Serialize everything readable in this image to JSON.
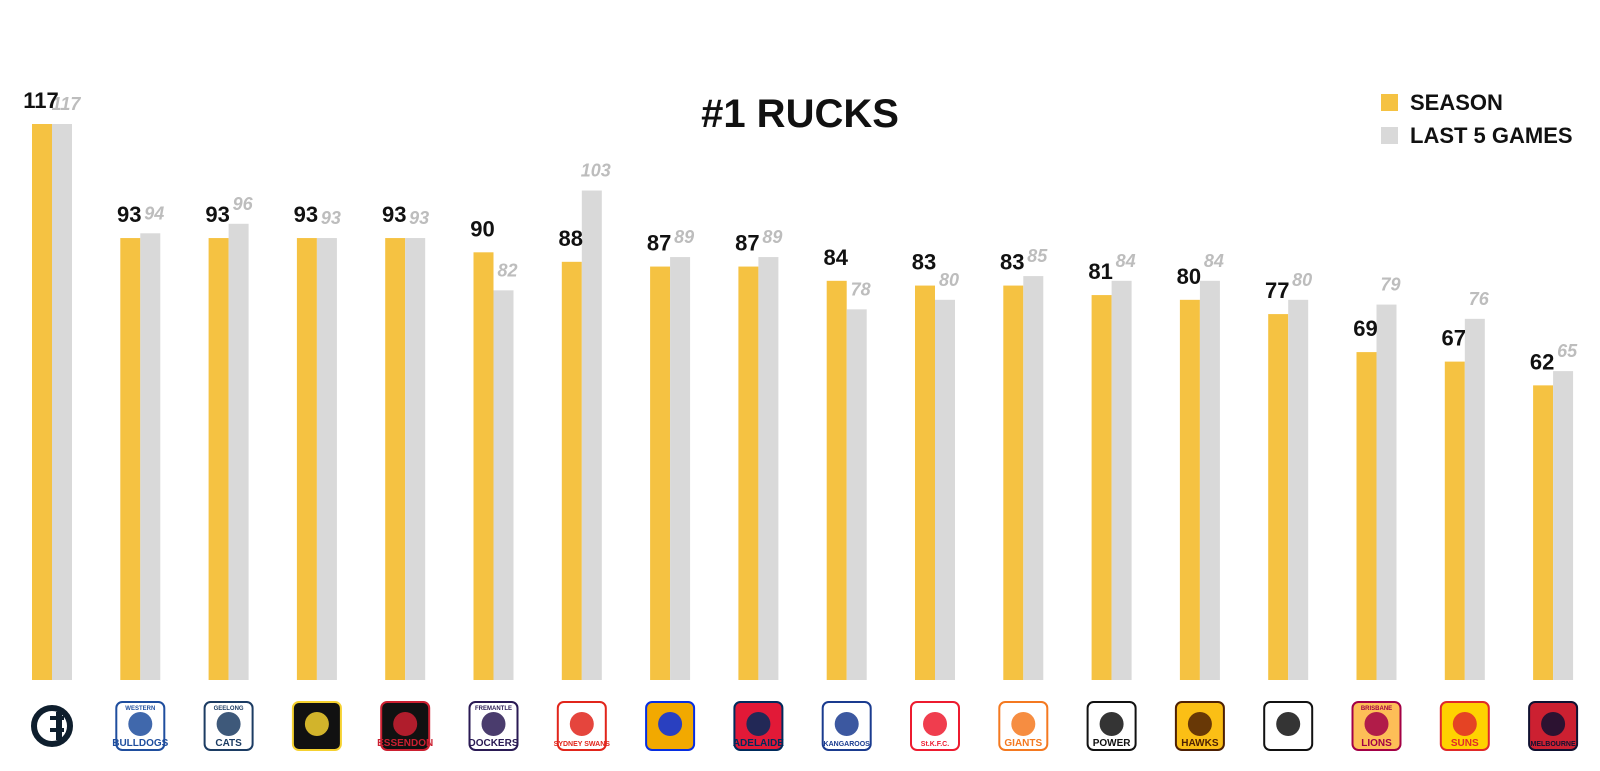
{
  "chart_data": {
    "type": "bar",
    "title": "#1 RUCKS",
    "xlabel": "",
    "ylabel": "",
    "ylim": [
      0,
      117
    ],
    "legend_position": "top-right",
    "grid": false,
    "colors": {
      "season": "#F5C242",
      "last5": "#D9D9D9"
    },
    "categories": [
      "Carlton",
      "Western Bulldogs",
      "Geelong Cats",
      "Richmond",
      "Essendon",
      "Fremantle Dockers",
      "Sydney Swans",
      "West Coast Eagles",
      "Adelaide Crows",
      "Kangaroos",
      "St Kilda",
      "GWS Giants",
      "Port Adelaide Power",
      "Hawthorn Hawks",
      "Collingwood",
      "Brisbane Lions",
      "Gold Coast Suns",
      "Melbourne"
    ],
    "series": [
      {
        "name": "SEASON",
        "values": [
          117,
          93,
          93,
          93,
          93,
          90,
          88,
          87,
          87,
          84,
          83,
          83,
          81,
          80,
          77,
          69,
          67,
          62
        ]
      },
      {
        "name": "LAST 5 GAMES",
        "values": [
          117,
          94,
          96,
          93,
          93,
          82,
          103,
          89,
          89,
          78,
          80,
          85,
          84,
          84,
          80,
          79,
          76,
          65
        ]
      }
    ]
  },
  "logos": [
    {
      "icon": "carlton-logo-icon",
      "text": "",
      "color": "#0e1e2d",
      "bg": "#ffffff"
    },
    {
      "icon": "western-bulldogs-logo-icon",
      "text": "BULLDOGS",
      "sub": "WESTERN",
      "color": "#1f4e9e",
      "bg": "#ffffff"
    },
    {
      "icon": "geelong-cats-logo-icon",
      "text": "CATS",
      "sub": "GEELONG",
      "color": "#1c3c63",
      "bg": "#ffffff"
    },
    {
      "icon": "richmond-tiger-logo-icon",
      "text": "",
      "color": "#f5d130",
      "bg": "#111111"
    },
    {
      "icon": "essendon-logo-icon",
      "text": "ESSENDON",
      "color": "#cc2031",
      "bg": "#111111"
    },
    {
      "icon": "fremantle-dockers-logo-icon",
      "text": "DOCKERS",
      "sub": "FREMANTLE",
      "color": "#2a1a54",
      "bg": "#ffffff"
    },
    {
      "icon": "sydney-swans-logo-icon",
      "text": "SYDNEY SWANS",
      "color": "#e1251b",
      "bg": "#ffffff"
    },
    {
      "icon": "west-coast-eagles-logo-icon",
      "text": "",
      "color": "#062ee2",
      "bg": "#f2a900"
    },
    {
      "icon": "adelaide-crows-logo-icon",
      "text": "ADELAIDE",
      "color": "#002b5c",
      "bg": "#e21937"
    },
    {
      "icon": "kangaroos-logo-icon",
      "text": "KANGAROOS",
      "color": "#1a3b8f",
      "bg": "#ffffff"
    },
    {
      "icon": "st-kilda-logo-icon",
      "text": "St.K.F.C.",
      "color": "#ed1b2f",
      "bg": "#ffffff"
    },
    {
      "icon": "gws-giants-logo-icon",
      "text": "GIANTS",
      "color": "#f47920",
      "bg": "#ffffff"
    },
    {
      "icon": "port-adelaide-power-logo-icon",
      "text": "POWER",
      "color": "#111111",
      "bg": "#ffffff"
    },
    {
      "icon": "hawthorn-hawks-logo-icon",
      "text": "HAWKS",
      "color": "#4d2004",
      "bg": "#fbbf15"
    },
    {
      "icon": "collingwood-magpie-logo-icon",
      "text": "",
      "color": "#111111",
      "bg": "#ffffff"
    },
    {
      "icon": "brisbane-lions-logo-icon",
      "text": "LIONS",
      "sub": "BRISBANE",
      "color": "#a30046",
      "bg": "#fdbe57"
    },
    {
      "icon": "gold-coast-suns-logo-icon",
      "text": "SUNS",
      "color": "#e02a2a",
      "bg": "#ffd200"
    },
    {
      "icon": "melbourne-logo-icon",
      "text": "MELBOURNE",
      "color": "#0f1131",
      "bg": "#cc2031"
    }
  ]
}
